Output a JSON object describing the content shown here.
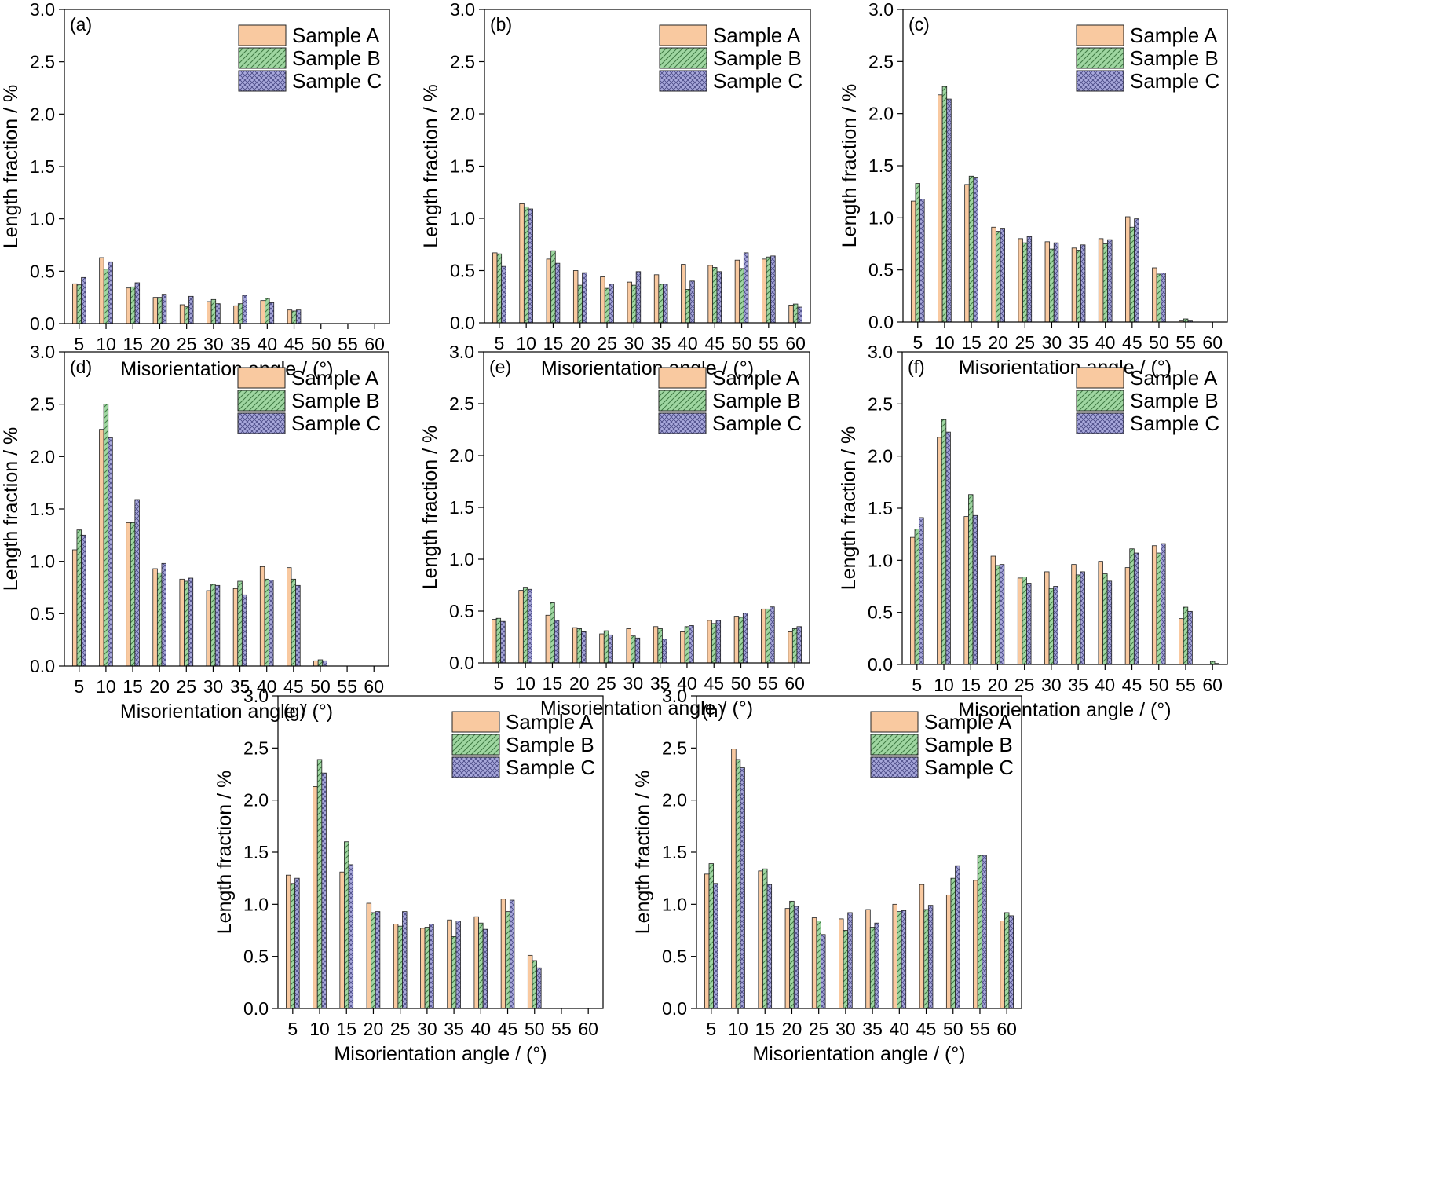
{
  "chart_data": [
    {
      "panel": "(a)",
      "type": "bar",
      "categories": [
        "5",
        "10",
        "15",
        "20",
        "25",
        "30",
        "35",
        "40",
        "45",
        "50",
        "55",
        "60"
      ],
      "series": [
        {
          "name": "Sample A",
          "values": [
            0.38,
            0.63,
            0.34,
            0.25,
            0.18,
            0.21,
            0.17,
            0.22,
            0.13,
            0,
            0,
            0
          ]
        },
        {
          "name": "Sample B",
          "values": [
            0.37,
            0.52,
            0.35,
            0.25,
            0.16,
            0.23,
            0.19,
            0.24,
            0.12,
            0,
            0,
            0
          ]
        },
        {
          "name": "Sample C",
          "values": [
            0.44,
            0.59,
            0.39,
            0.28,
            0.26,
            0.19,
            0.27,
            0.2,
            0.13,
            0,
            0,
            0
          ]
        }
      ],
      "xlabel": "Misorientation angle / (°)",
      "ylabel": "Length fraction / %",
      "ylim": [
        0,
        3.0
      ],
      "yticks": [
        "0.0",
        "0.5",
        "1.0",
        "1.5",
        "2.0",
        "2.5",
        "3.0"
      ],
      "legend": "top-right"
    },
    {
      "panel": "(b)",
      "type": "bar",
      "categories": [
        "5",
        "10",
        "15",
        "20",
        "25",
        "30",
        "35",
        "40",
        "45",
        "50",
        "55",
        "60"
      ],
      "series": [
        {
          "name": "Sample A",
          "values": [
            0.67,
            1.14,
            0.61,
            0.5,
            0.44,
            0.39,
            0.46,
            0.56,
            0.55,
            0.6,
            0.61,
            0.17
          ]
        },
        {
          "name": "Sample B",
          "values": [
            0.66,
            1.11,
            0.69,
            0.36,
            0.33,
            0.36,
            0.37,
            0.32,
            0.53,
            0.52,
            0.63,
            0.18
          ]
        },
        {
          "name": "Sample C",
          "values": [
            0.54,
            1.09,
            0.57,
            0.48,
            0.37,
            0.49,
            0.37,
            0.4,
            0.49,
            0.67,
            0.64,
            0.15
          ]
        }
      ],
      "xlabel": "Misorientation angle / (°)",
      "ylabel": "Length fraction / %",
      "ylim": [
        0,
        3.0
      ],
      "yticks": [
        "0.0",
        "0.5",
        "1.0",
        "1.5",
        "2.0",
        "2.5",
        "3.0"
      ],
      "legend": "top-right"
    },
    {
      "panel": "(c)",
      "type": "bar",
      "categories": [
        "5",
        "10",
        "15",
        "20",
        "25",
        "30",
        "35",
        "40",
        "45",
        "50",
        "55",
        "60"
      ],
      "series": [
        {
          "name": "Sample A",
          "values": [
            1.16,
            2.18,
            1.32,
            0.91,
            0.8,
            0.77,
            0.71,
            0.8,
            1.01,
            0.52,
            0.01,
            0
          ]
        },
        {
          "name": "Sample B",
          "values": [
            1.33,
            2.26,
            1.4,
            0.87,
            0.76,
            0.7,
            0.69,
            0.75,
            0.91,
            0.46,
            0.03,
            0
          ]
        },
        {
          "name": "Sample C",
          "values": [
            1.18,
            2.14,
            1.39,
            0.9,
            0.82,
            0.76,
            0.74,
            0.79,
            0.99,
            0.47,
            0.01,
            0
          ]
        }
      ],
      "xlabel": "Misorientation angle / (°)",
      "ylabel": "Length fraction / %",
      "ylim": [
        0,
        3.0
      ],
      "yticks": [
        "0.0",
        "0.5",
        "1.0",
        "1.5",
        "2.0",
        "2.5",
        "3.0"
      ],
      "legend": "top-right"
    },
    {
      "panel": "(d)",
      "type": "bar",
      "categories": [
        "5",
        "10",
        "15",
        "20",
        "25",
        "30",
        "35",
        "40",
        "45",
        "50",
        "55",
        "60"
      ],
      "series": [
        {
          "name": "Sample A",
          "values": [
            1.11,
            2.26,
            1.37,
            0.93,
            0.83,
            0.72,
            0.74,
            0.95,
            0.94,
            0.05,
            0,
            0
          ]
        },
        {
          "name": "Sample B",
          "values": [
            1.3,
            2.5,
            1.37,
            0.89,
            0.81,
            0.78,
            0.81,
            0.83,
            0.83,
            0.06,
            0,
            0
          ]
        },
        {
          "name": "Sample C",
          "values": [
            1.25,
            2.18,
            1.59,
            0.98,
            0.84,
            0.77,
            0.68,
            0.82,
            0.77,
            0.05,
            0,
            0
          ]
        }
      ],
      "xlabel": "Misorientation angle / (°)",
      "ylabel": "Length fraction / %",
      "ylim": [
        0,
        3.0
      ],
      "yticks": [
        "0.0",
        "0.5",
        "1.0",
        "1.5",
        "2.0",
        "2.5",
        "3.0"
      ],
      "legend": "top-right"
    },
    {
      "panel": "(e)",
      "type": "bar",
      "categories": [
        "5",
        "10",
        "15",
        "20",
        "25",
        "30",
        "35",
        "40",
        "45",
        "50",
        "55",
        "60"
      ],
      "series": [
        {
          "name": "Sample A",
          "values": [
            0.42,
            0.7,
            0.46,
            0.34,
            0.28,
            0.33,
            0.35,
            0.3,
            0.41,
            0.45,
            0.52,
            0.3
          ]
        },
        {
          "name": "Sample B",
          "values": [
            0.43,
            0.73,
            0.58,
            0.33,
            0.31,
            0.26,
            0.33,
            0.35,
            0.38,
            0.44,
            0.52,
            0.33
          ]
        },
        {
          "name": "Sample C",
          "values": [
            0.4,
            0.71,
            0.41,
            0.3,
            0.27,
            0.24,
            0.23,
            0.36,
            0.41,
            0.48,
            0.54,
            0.35
          ]
        }
      ],
      "xlabel": "Misorientation angle / (°)",
      "ylabel": "Length fraction / %",
      "ylim": [
        0,
        3.0
      ],
      "yticks": [
        "0.0",
        "0.5",
        "1.0",
        "1.5",
        "2.0",
        "2.5",
        "3.0"
      ],
      "legend": "top-right"
    },
    {
      "panel": "(f)",
      "type": "bar",
      "categories": [
        "5",
        "10",
        "15",
        "20",
        "25",
        "30",
        "35",
        "40",
        "45",
        "50",
        "55",
        "60"
      ],
      "series": [
        {
          "name": "Sample A",
          "values": [
            1.22,
            2.18,
            1.42,
            1.04,
            0.83,
            0.89,
            0.96,
            0.99,
            0.93,
            1.14,
            0.44,
            0
          ]
        },
        {
          "name": "Sample B",
          "values": [
            1.3,
            2.35,
            1.63,
            0.95,
            0.84,
            0.73,
            0.86,
            0.87,
            1.11,
            1.07,
            0.55,
            0.03
          ]
        },
        {
          "name": "Sample C",
          "values": [
            1.41,
            2.23,
            1.43,
            0.96,
            0.78,
            0.75,
            0.89,
            0.8,
            1.07,
            1.16,
            0.51,
            0.01
          ]
        }
      ],
      "xlabel": "Misorientation angle / (°)",
      "ylabel": "Length fraction / %",
      "ylim": [
        0,
        3.0
      ],
      "yticks": [
        "0.0",
        "0.5",
        "1.0",
        "1.5",
        "2.0",
        "2.5",
        "3.0"
      ],
      "legend": "top-right"
    },
    {
      "panel": "(g)",
      "type": "bar",
      "categories": [
        "5",
        "10",
        "15",
        "20",
        "25",
        "30",
        "35",
        "40",
        "45",
        "50",
        "55",
        "60"
      ],
      "series": [
        {
          "name": "Sample A",
          "values": [
            1.28,
            2.13,
            1.31,
            1.01,
            0.81,
            0.77,
            0.85,
            0.88,
            1.05,
            0.51,
            0,
            0
          ]
        },
        {
          "name": "Sample B",
          "values": [
            1.2,
            2.39,
            1.6,
            0.92,
            0.79,
            0.78,
            0.69,
            0.82,
            0.93,
            0.46,
            0,
            0
          ]
        },
        {
          "name": "Sample C",
          "values": [
            1.25,
            2.26,
            1.38,
            0.93,
            0.93,
            0.81,
            0.84,
            0.76,
            1.04,
            0.39,
            0,
            0
          ]
        }
      ],
      "xlabel": "Misorientation angle / (°)",
      "ylabel": "Length fraction / %",
      "ylim": [
        0,
        3.0
      ],
      "yticks": [
        "0.0",
        "0.5",
        "1.0",
        "1.5",
        "2.0",
        "2.5",
        "3.0"
      ],
      "legend": "top-right"
    },
    {
      "panel": "(h)",
      "type": "bar",
      "categories": [
        "5",
        "10",
        "15",
        "20",
        "25",
        "30",
        "35",
        "40",
        "45",
        "50",
        "55",
        "60"
      ],
      "series": [
        {
          "name": "Sample A",
          "values": [
            1.29,
            2.49,
            1.32,
            0.96,
            0.87,
            0.86,
            0.95,
            1.0,
            1.19,
            1.09,
            1.23,
            0.84
          ]
        },
        {
          "name": "Sample B",
          "values": [
            1.39,
            2.39,
            1.34,
            1.03,
            0.84,
            0.75,
            0.78,
            0.93,
            0.95,
            1.25,
            1.47,
            0.92
          ]
        },
        {
          "name": "Sample C",
          "values": [
            1.2,
            2.31,
            1.19,
            0.98,
            0.71,
            0.92,
            0.82,
            0.94,
            0.99,
            1.37,
            1.47,
            0.89
          ]
        }
      ],
      "xlabel": "Misorientation angle / (°)",
      "ylabel": "Length fraction / %",
      "ylim": [
        0,
        3.0
      ],
      "yticks": [
        "0.0",
        "0.5",
        "1.0",
        "1.5",
        "2.0",
        "2.5",
        "3.0"
      ],
      "legend": "top-right"
    }
  ],
  "colors": {
    "sample_a": "#f9c9a0",
    "sample_b": "#9fd6a1",
    "sample_c": "#a9a9dc",
    "stroke": "#222222"
  }
}
